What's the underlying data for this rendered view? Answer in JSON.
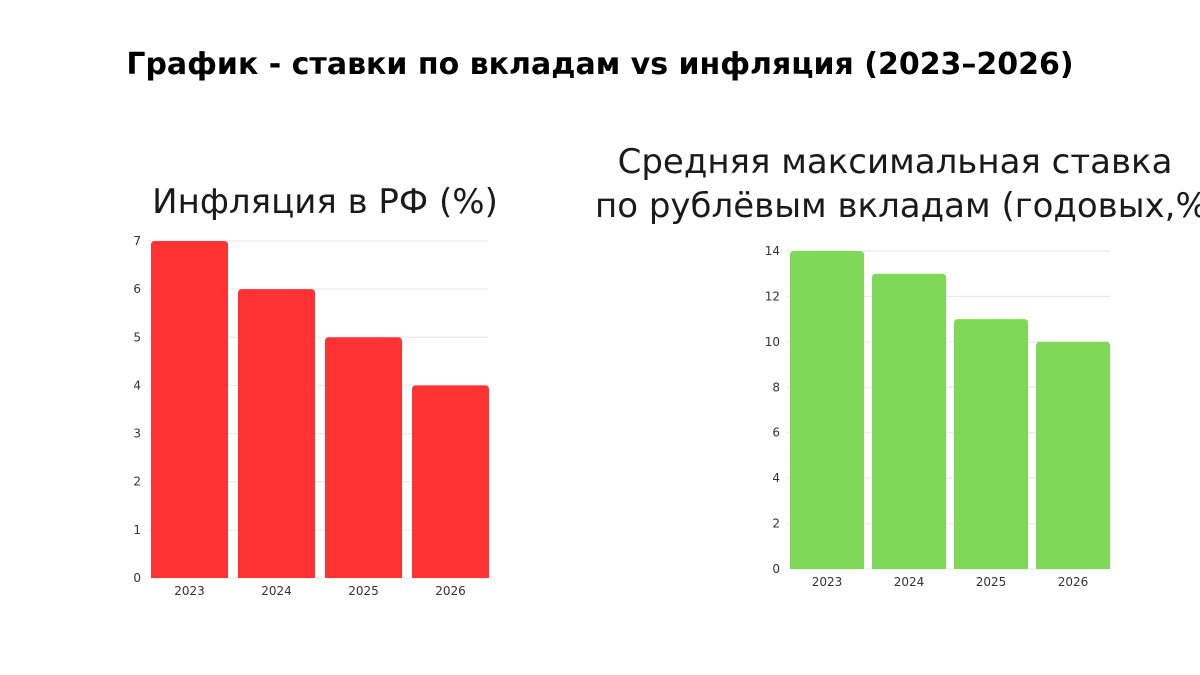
{
  "title": "График - ставки по вкладам vs инфляция (2023–2026)",
  "chart_data": [
    {
      "type": "bar",
      "title": "Инфляция в РФ (%)",
      "categories": [
        "2023",
        "2024",
        "2025",
        "2026"
      ],
      "values": [
        7,
        6,
        5,
        4
      ],
      "ylim": [
        0,
        7
      ],
      "yticks": [
        0,
        1,
        2,
        3,
        4,
        5,
        6,
        7
      ],
      "color": "#ff3333",
      "grid": true,
      "xlabel": "",
      "ylabel": ""
    },
    {
      "type": "bar",
      "title_lines": [
        "Средняя максимальная ставка",
        "по рублёвым вкладам (годовых,%)"
      ],
      "categories": [
        "2023",
        "2024",
        "2025",
        "2026"
      ],
      "values": [
        14,
        13,
        11,
        10
      ],
      "ylim": [
        0,
        14
      ],
      "yticks": [
        0,
        2,
        4,
        6,
        8,
        10,
        12,
        14
      ],
      "color": "#7fd957",
      "grid": true,
      "xlabel": "",
      "ylabel": ""
    }
  ]
}
